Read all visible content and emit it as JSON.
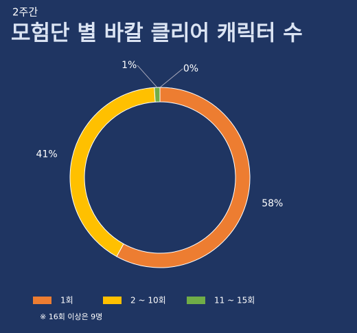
{
  "chart_data": {
    "type": "donut",
    "subtitle": "2주간",
    "title": "모험단 별 바칼 클리어 캐릭터 수",
    "categories": [
      "1회",
      "2 ~ 10회",
      "11 ~ 15회",
      null
    ],
    "values": [
      58,
      41,
      1,
      0
    ],
    "value_labels": [
      "58%",
      "41%",
      "1%",
      "0%"
    ],
    "colors": [
      "#ed7d31",
      "#ffc000",
      "#70ad47",
      "#5b9bd5"
    ],
    "note": "※ 16회 이상은 9명"
  }
}
